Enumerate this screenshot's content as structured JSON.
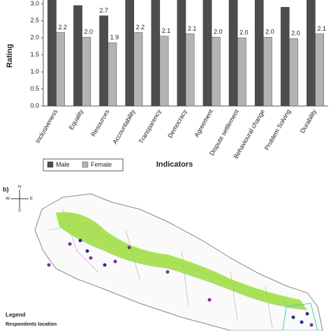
{
  "chart_data": {
    "type": "bar",
    "y_label": "Rating",
    "x_label": "Indicators",
    "categories": [
      "Inclusiveness",
      "Equality",
      "Resources",
      "Accountability",
      "Transparency",
      "Democracy",
      "Agreement",
      "Dispute settlement",
      "Behavioural change",
      "Problem Solving",
      "Durability"
    ],
    "series": [
      {
        "name": "Male",
        "color": "#4d4d4d",
        "values": [
          3.2,
          2.95,
          2.65,
          3.2,
          3.2,
          3.2,
          3.2,
          3.2,
          3.2,
          2.9,
          3.2
        ],
        "value_labels": [
          null,
          null,
          "2.7",
          null,
          null,
          null,
          null,
          null,
          null,
          null,
          null
        ]
      },
      {
        "name": "Female",
        "color": "#b3b3b3",
        "values": [
          2.16,
          2.02,
          1.86,
          2.16,
          2.05,
          2.12,
          2.02,
          2.0,
          2.02,
          1.98,
          2.12
        ],
        "value_labels": [
          "2.2",
          "2.0",
          "1.9",
          "2.2",
          "2.1",
          "2.1",
          "2.0",
          "2.0",
          "2.0",
          "2.0",
          "2.1"
        ]
      }
    ],
    "ylim": [
      0,
      3.05
    ],
    "yticks": [
      {
        "value": 0,
        "label": "0.0"
      },
      {
        "value": 0.5,
        "label": "0.5"
      },
      {
        "value": 1,
        "label": "1.0"
      },
      {
        "value": 1.5,
        "label": "1.5"
      },
      {
        "value": 2,
        "label": "2.0"
      },
      {
        "value": 2.5,
        "label": "2.5"
      },
      {
        "value": 3,
        "label": "3.0"
      }
    ],
    "grid": false,
    "legend": "bottom-left"
  },
  "map": {
    "panel_label": "b)",
    "compass": {
      "north": "N",
      "east": "E",
      "south": "S",
      "west": "W"
    },
    "legend_title": "Legend",
    "legend_subtitle": "Respondents location"
  }
}
